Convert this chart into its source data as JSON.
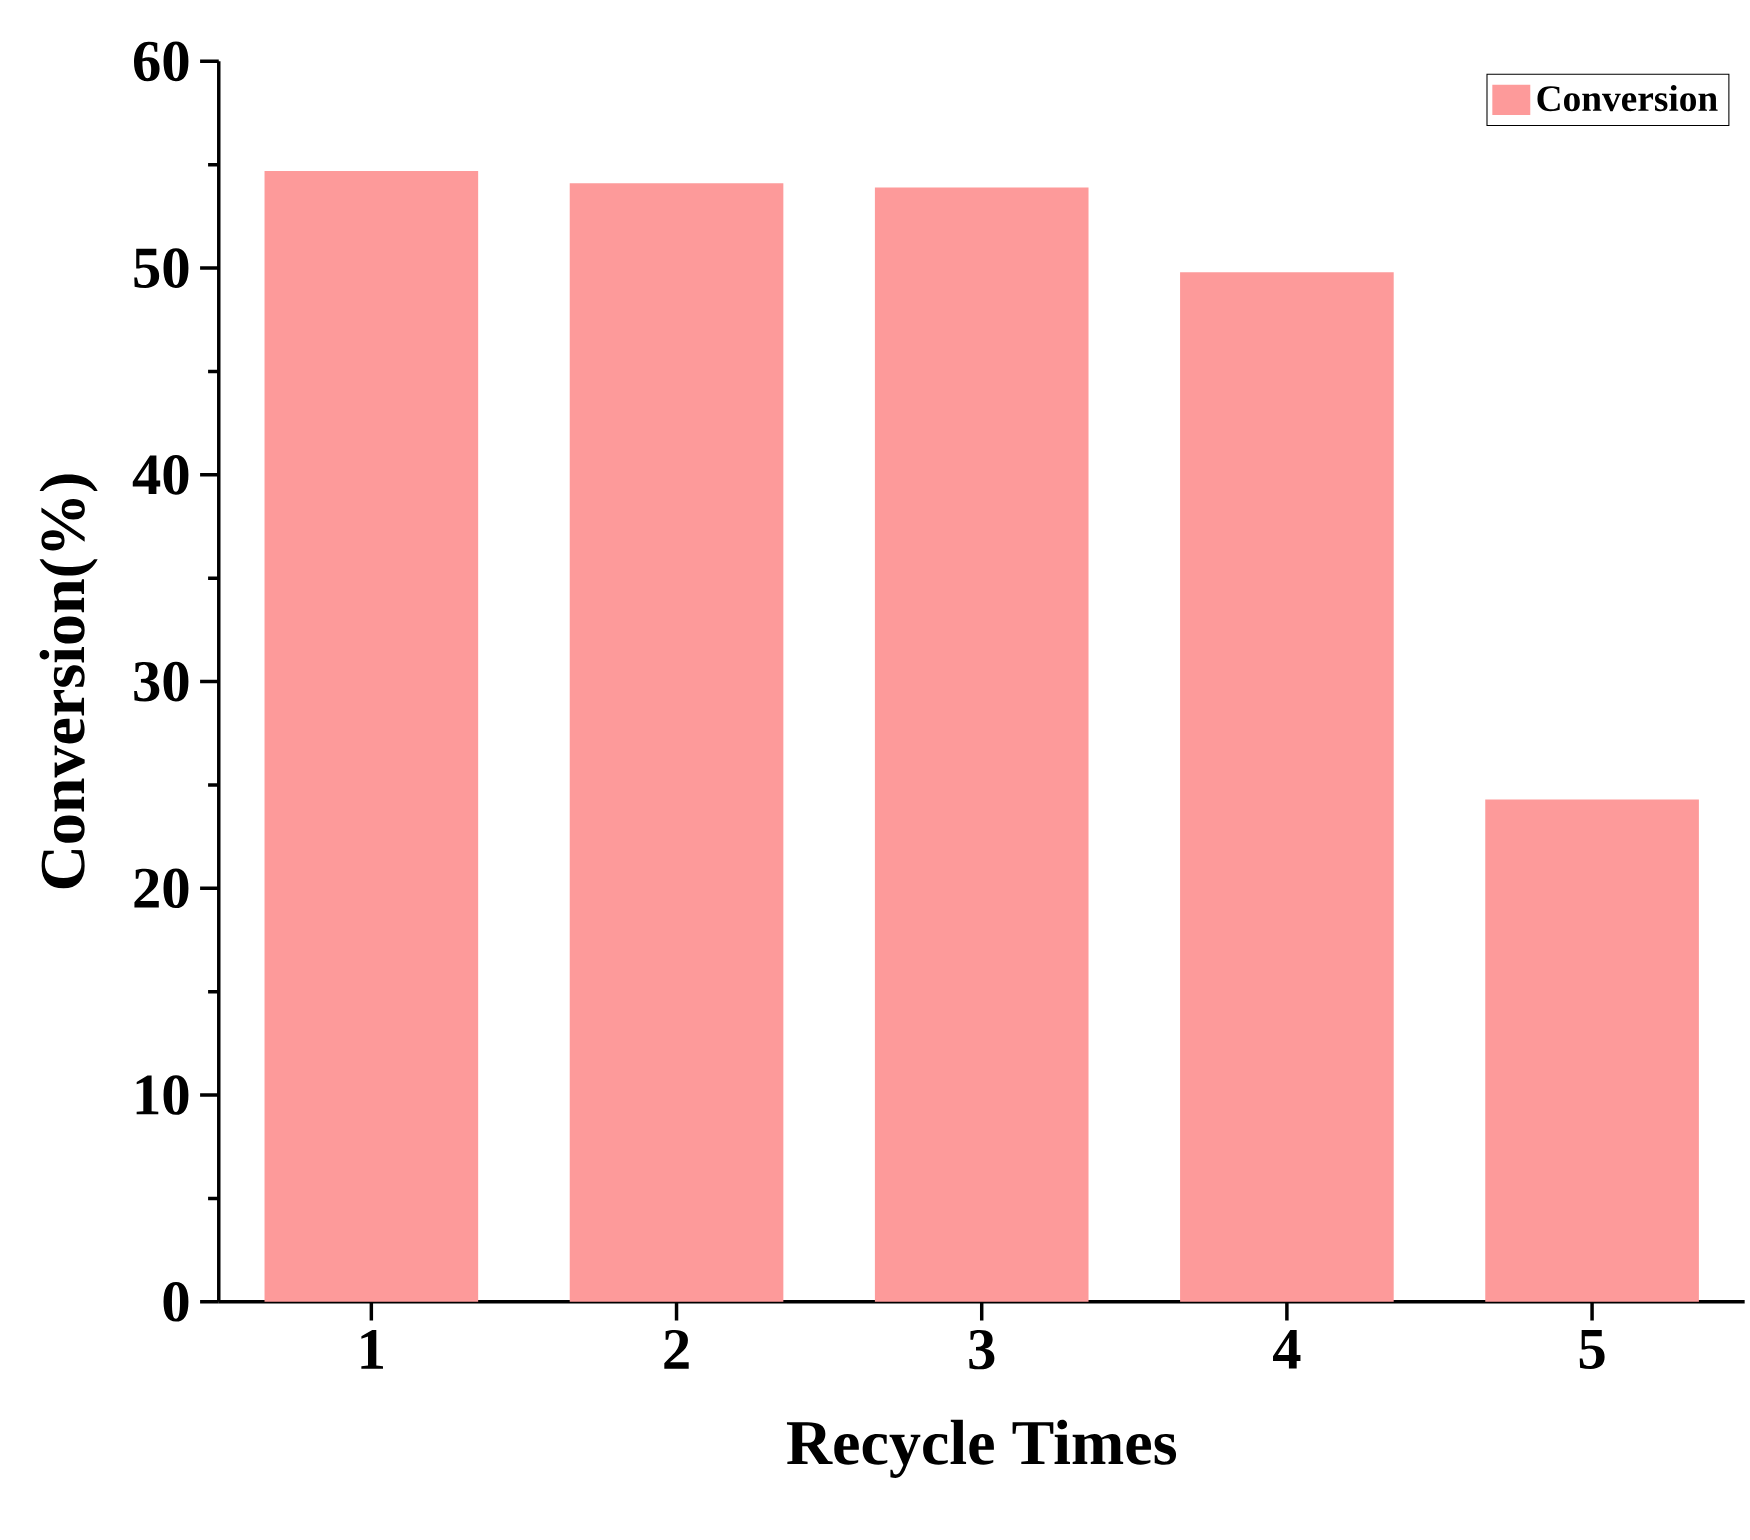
{
  "chart_data": {
    "type": "bar",
    "xlabel": "Recycle Times",
    "ylabel": "Conversion(%)",
    "categories": [
      "1",
      "2",
      "3",
      "4",
      "5"
    ],
    "series": [
      {
        "name": "Conversion",
        "color": "#fd9a9a",
        "values": [
          54.7,
          54.1,
          53.9,
          49.8,
          24.3
        ]
      }
    ],
    "ylim": [
      0,
      60
    ],
    "yticks": [
      0,
      10,
      20,
      30,
      40,
      50,
      60
    ],
    "legend": "top right"
  }
}
